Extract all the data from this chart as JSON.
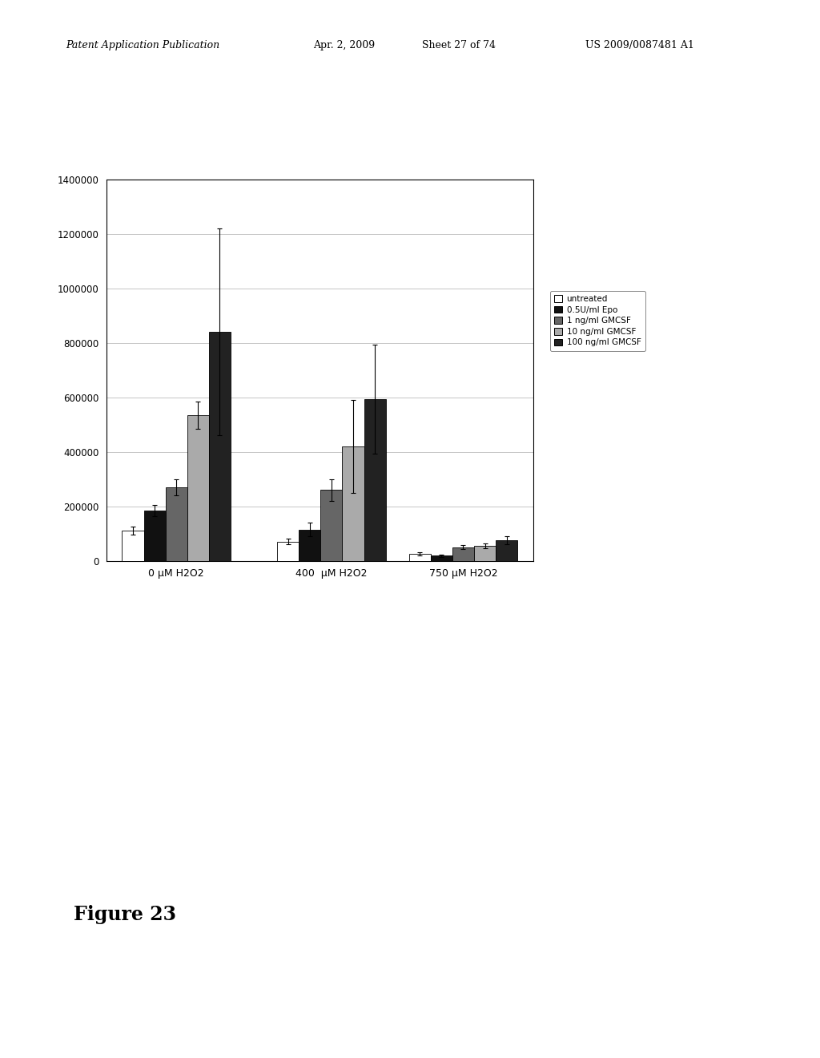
{
  "groups": [
    "0 μM H2O2",
    "400  μM H2O2",
    "750 μM H2O2"
  ],
  "series": [
    {
      "label": "untreated",
      "color": "#ffffff",
      "edgecolor": "#000000",
      "values": [
        110000,
        70000,
        25000
      ],
      "errors": [
        15000,
        10000,
        5000
      ]
    },
    {
      "label": "0.5U/ml Epo",
      "color": "#111111",
      "edgecolor": "#000000",
      "values": [
        185000,
        115000,
        18000
      ],
      "errors": [
        20000,
        25000,
        4000
      ]
    },
    {
      "label": "1 ng/ml GMCSF",
      "color": "#666666",
      "edgecolor": "#000000",
      "values": [
        270000,
        260000,
        50000
      ],
      "errors": [
        30000,
        40000,
        8000
      ]
    },
    {
      "label": "10 ng/ml GMCSF",
      "color": "#aaaaaa",
      "edgecolor": "#000000",
      "values": [
        535000,
        420000,
        55000
      ],
      "errors": [
        50000,
        170000,
        10000
      ]
    },
    {
      "label": "100 ng/ml GMCSF",
      "color": "#222222",
      "edgecolor": "#000000",
      "values": [
        840000,
        595000,
        75000
      ],
      "errors": [
        380000,
        200000,
        15000
      ]
    }
  ],
  "ylim": [
    0,
    1400000
  ],
  "yticks": [
    0,
    200000,
    400000,
    600000,
    800000,
    1000000,
    1200000,
    1400000
  ],
  "background_color": "#ffffff",
  "figure_background": "#ffffff",
  "bar_width": 0.14,
  "header_line1": "Patent Application Publication",
  "header_line2": "Apr. 2, 2009",
  "header_line3": "Sheet 27 of 74",
  "header_line4": "US 2009/0087481 A1",
  "figure_label": "Figure 23"
}
